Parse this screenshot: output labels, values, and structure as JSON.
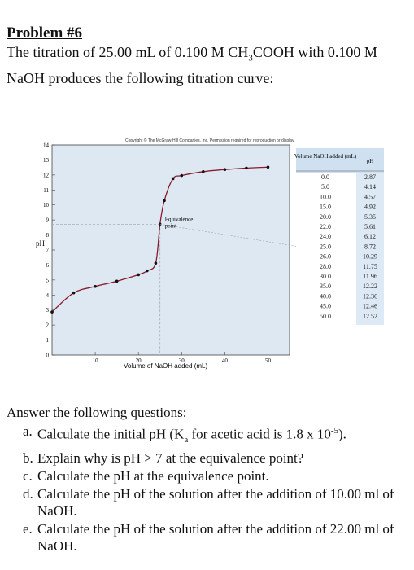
{
  "problem": {
    "title": "Problem #6",
    "intro_part1": "The titration of 25.00 mL of 0.100 M CH",
    "intro_sub": "3",
    "intro_part2": "COOH with 0.100 M NaOH produces the following titration curve:"
  },
  "figure": {
    "copyright": "Copyright © The McGraw-Hill Companies, Inc. Permission required for reproduction or display.",
    "annotation": "Equivalence point",
    "table_headers": [
      "Volume NaOH added (mL)",
      "pH"
    ],
    "colors": {
      "plot_bg": "#dde8f3",
      "curve": "#8b1a2b",
      "marker": "#111111",
      "table_header_bg": "#cfe0f0",
      "dashed": "#9aa3ad"
    }
  },
  "chart_data": {
    "type": "line",
    "xlabel": "Volume of NaOH added (mL)",
    "ylabel": "pH",
    "xlim": [
      0,
      55
    ],
    "ylim": [
      0,
      14
    ],
    "xticks": [
      10,
      20,
      30,
      40,
      50
    ],
    "yticks": [
      0,
      1,
      2,
      3,
      4,
      5,
      6,
      7,
      8,
      9,
      10,
      11,
      12,
      13,
      14
    ],
    "grid": false,
    "equivalence_point": {
      "x": 25.0,
      "y": 8.72
    },
    "x": [
      0.0,
      5.0,
      10.0,
      15.0,
      20.0,
      22.0,
      24.0,
      25.0,
      26.0,
      28.0,
      30.0,
      35.0,
      40.0,
      45.0,
      50.0
    ],
    "x_labels": [
      "0.0",
      "5.0",
      "10.0",
      "15.0",
      "20.0",
      "22.0",
      "24.0",
      "25.0",
      "26.0",
      "28.0",
      "30.0",
      "35.0",
      "40.0",
      "45.0",
      "50.0"
    ],
    "y": [
      2.87,
      4.14,
      4.57,
      4.92,
      5.35,
      5.61,
      6.12,
      8.72,
      10.29,
      11.75,
      11.96,
      12.22,
      12.36,
      12.46,
      12.52
    ],
    "y_labels": [
      "2.87",
      "4.14",
      "4.57",
      "4.92",
      "5.35",
      "5.61",
      "6.12",
      "8.72",
      "10.29",
      "11.75",
      "11.96",
      "12.22",
      "12.36",
      "12.46",
      "12.52"
    ]
  },
  "questions": {
    "lead": "Answer the following questions:",
    "a": {
      "letter": "a.",
      "pre": "Calculate the initial pH (K",
      "sub": "a",
      "mid": " for acetic acid is 1.8 x 10",
      "sup": "-5",
      "post": ")."
    },
    "b": {
      "letter": "b.",
      "text": "Explain why is pH > 7 at the equivalence point?"
    },
    "c": {
      "letter": "c.",
      "text": "Calculate the pH at the equivalence point."
    },
    "d": {
      "letter": "d.",
      "text": "Calculate the pH of the solution after the addition of 10.00 ml of NaOH."
    },
    "e": {
      "letter": "e.",
      "text": "Calculate the pH of the solution after the addition of 22.00 ml of NaOH."
    }
  }
}
